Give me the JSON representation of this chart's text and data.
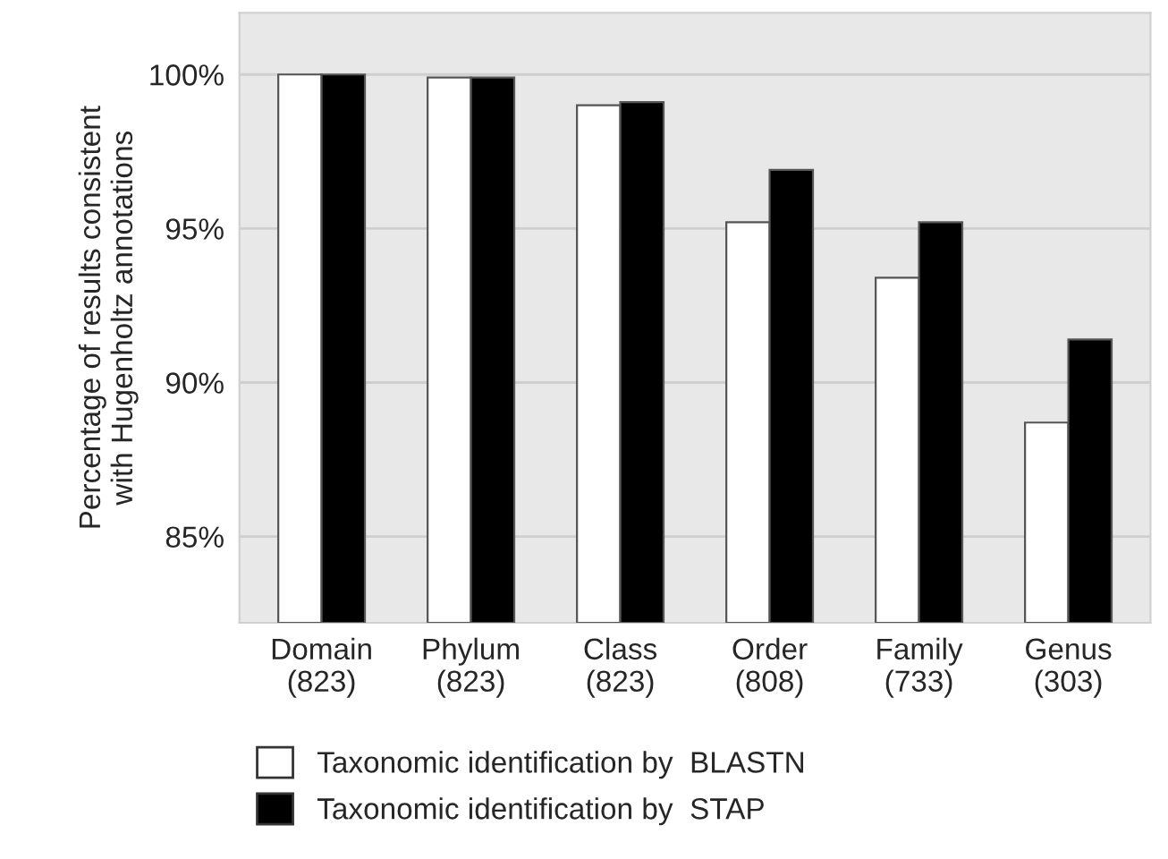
{
  "chart_data": {
    "type": "bar",
    "ylabel": "Percentage of results consistent\nwith Hugenholtz annotations",
    "categories": [
      "Domain\n(823)",
      "Phylum\n(823)",
      "Class\n(823)",
      "Order\n(808)",
      "Family\n(733)",
      "Genus\n(303)"
    ],
    "series": [
      {
        "name": "Taxonomic identification by  BLASTN",
        "color": "#ffffff",
        "values": [
          100,
          99.9,
          99.0,
          95.2,
          93.4,
          88.7
        ]
      },
      {
        "name": "Taxonomic identification by  STAP",
        "color": "#000000",
        "values": [
          100,
          99.9,
          99.1,
          96.9,
          95.2,
          91.4
        ]
      }
    ],
    "ylim": [
      82.2,
      102
    ],
    "yticks": [
      {
        "value": 85,
        "label": "85%"
      },
      {
        "value": 90,
        "label": "90%"
      },
      {
        "value": 95,
        "label": "95%"
      },
      {
        "value": 100,
        "label": "100%"
      }
    ],
    "grid": "y",
    "legend": "bottom left"
  }
}
